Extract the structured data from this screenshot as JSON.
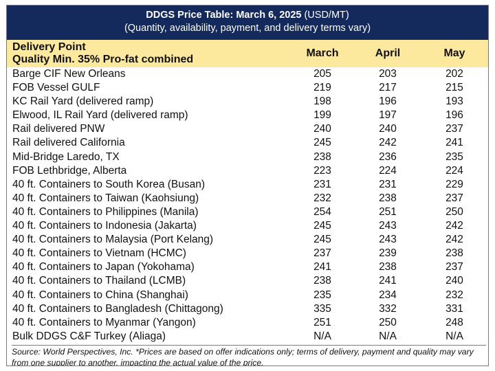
{
  "title": {
    "bold": "DDGS Price Table: March 6, 2025",
    "unit": " (USD/MT)",
    "subtitle": "(Quantity, availability, payment, and delivery terms vary)"
  },
  "header": {
    "line1": "Delivery Point",
    "line2": "Quality Min. 35% Pro-fat combined",
    "months": [
      "March",
      "April",
      "May"
    ]
  },
  "rows": [
    {
      "label": "Barge CIF New Orleans",
      "values": [
        "205",
        "203",
        "202"
      ]
    },
    {
      "label": "FOB Vessel GULF",
      "values": [
        "219",
        "217",
        "215"
      ]
    },
    {
      "label": "KC Rail Yard (delivered ramp)",
      "values": [
        "198",
        "196",
        "193"
      ]
    },
    {
      "label": "Elwood, IL Rail Yard (delivered ramp)",
      "values": [
        "199",
        "197",
        "196"
      ]
    },
    {
      "label": "Rail delivered PNW",
      "values": [
        "240",
        "240",
        "237"
      ]
    },
    {
      "label": "Rail delivered California",
      "values": [
        "245",
        "242",
        "241"
      ]
    },
    {
      "label": "Mid-Bridge Laredo, TX",
      "values": [
        "238",
        "236",
        "235"
      ]
    },
    {
      "label": "FOB Lethbridge, Alberta",
      "values": [
        "223",
        "224",
        "224"
      ]
    },
    {
      "label": "40 ft. Containers to South Korea (Busan)",
      "values": [
        "231",
        "231",
        "229"
      ]
    },
    {
      "label": "40 ft. Containers to Taiwan (Kaohsiung)",
      "values": [
        "232",
        "238",
        "237"
      ]
    },
    {
      "label": "40 ft. Containers to Philippines (Manila)",
      "values": [
        "254",
        "251",
        "250"
      ]
    },
    {
      "label": "40 ft. Containers to Indonesia (Jakarta)",
      "values": [
        "245",
        "243",
        "242"
      ]
    },
    {
      "label": "40 ft. Containers to Malaysia (Port Kelang)",
      "values": [
        "245",
        "243",
        "242"
      ]
    },
    {
      "label": "40 ft. Containers to Vietnam (HCMC)",
      "values": [
        "237",
        "239",
        "238"
      ]
    },
    {
      "label": "40 ft. Containers to Japan (Yokohama)",
      "values": [
        "241",
        "238",
        "237"
      ]
    },
    {
      "label": "40 ft. Containers to Thailand (LCMB)",
      "values": [
        "238",
        "241",
        "240"
      ]
    },
    {
      "label": "40 ft. Containers to China (Shanghai)",
      "values": [
        "235",
        "234",
        "232"
      ]
    },
    {
      "label": "40 ft. Containers to Bangladesh (Chittagong)",
      "values": [
        "335",
        "332",
        "331"
      ]
    },
    {
      "label": "40 ft. Containers to Myanmar (Yangon)",
      "values": [
        "251",
        "250",
        "248"
      ]
    },
    {
      "label": "Bulk DDGS C&F Turkey (Aliaga)",
      "values": [
        "N/A",
        "N/A",
        "N/A"
      ]
    }
  ],
  "source": "Source: World Perspectives, Inc. *Prices are based on offer indications only; terms of delivery, payment and quality may vary from one supplier to another, impacting the actual value of the price.",
  "colors": {
    "title_bg": "#14295c",
    "header_bg": "#fde99d"
  }
}
